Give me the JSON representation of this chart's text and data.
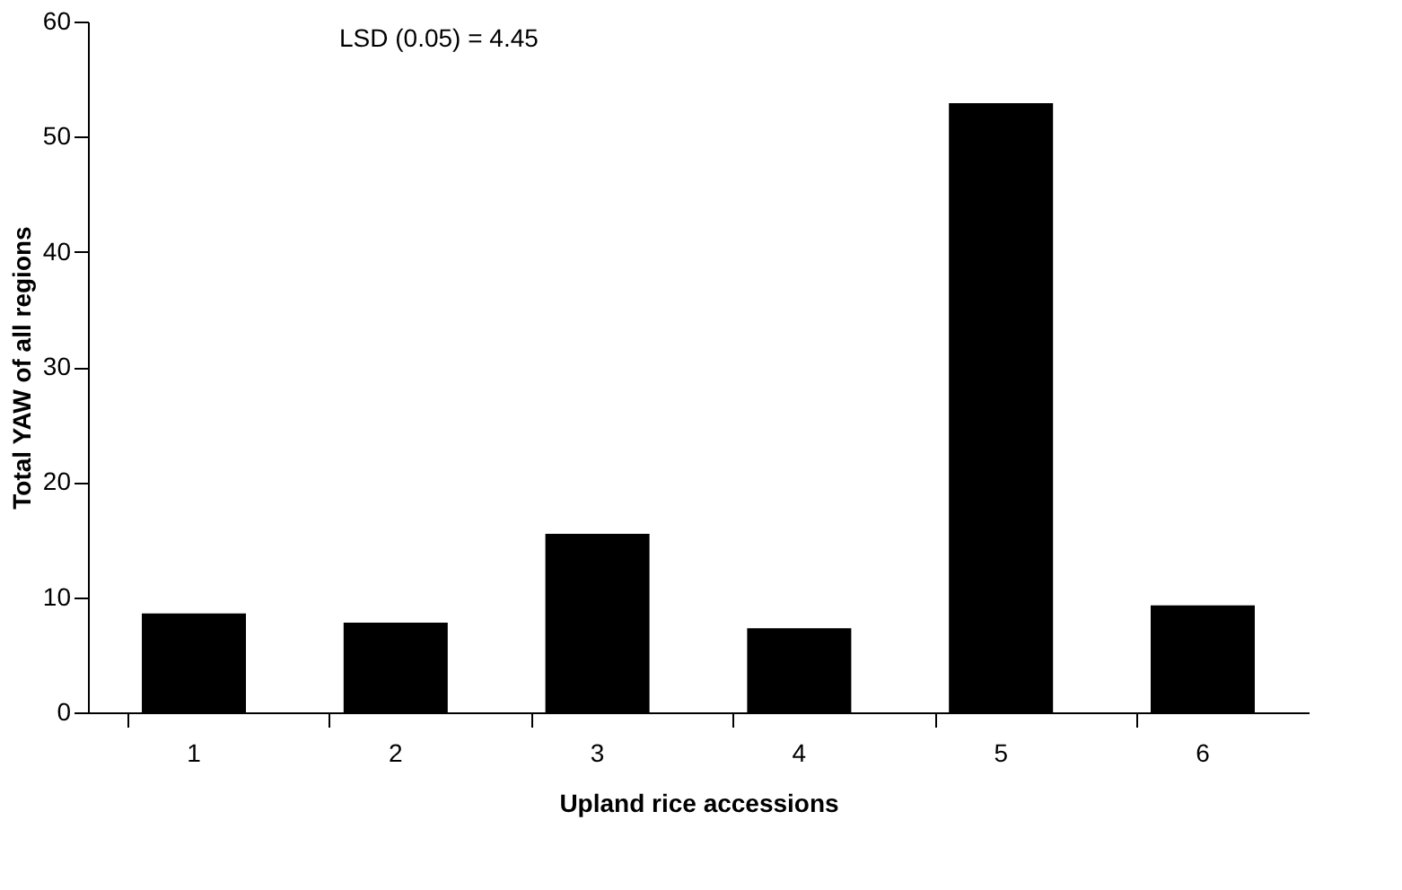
{
  "chart_data": {
    "type": "bar",
    "xlabel": "Upland rice accessions",
    "ylabel": "Total YAW of all regions",
    "categories": [
      "1",
      "2",
      "3",
      "4",
      "5",
      "6"
    ],
    "values": [
      8.6,
      7.8,
      15.5,
      7.3,
      52.9,
      9.3
    ],
    "color": "#000000",
    "ylim": [
      0,
      60
    ],
    "yticks": [
      0,
      10,
      20,
      30,
      40,
      50,
      60
    ],
    "grid": false,
    "annotations": [
      "LSD (0.05) = 4.45"
    ]
  }
}
